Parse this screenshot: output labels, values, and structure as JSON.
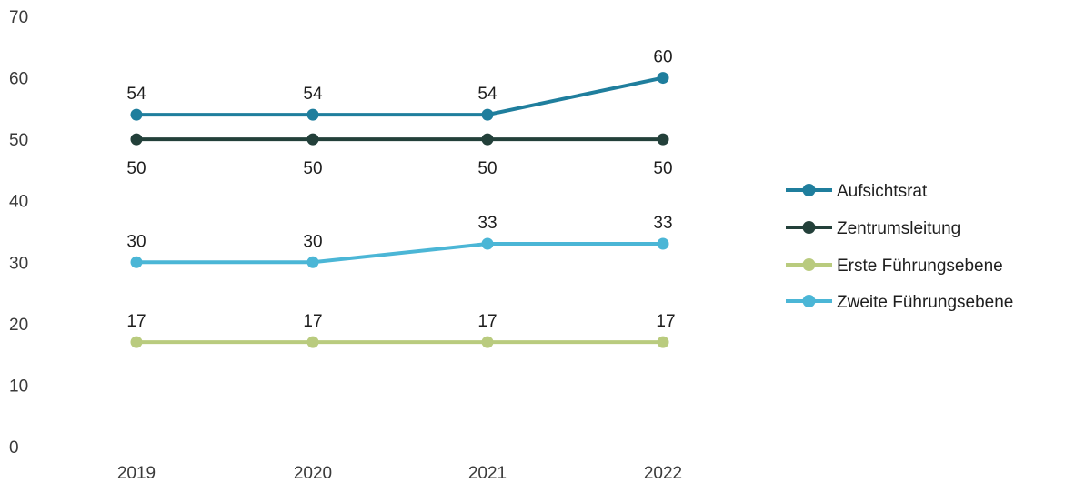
{
  "chart_data": {
    "type": "line",
    "categories": [
      "2019",
      "2020",
      "2021",
      "2022"
    ],
    "ylim": [
      0,
      70
    ],
    "yticks": [
      "0",
      "10",
      "20",
      "30",
      "40",
      "50",
      "60",
      "70"
    ],
    "grid": false,
    "legend_position": "right",
    "series": [
      {
        "name": "Aufsichtsrat",
        "values": [
          54,
          54,
          54,
          60
        ],
        "labels": [
          "54",
          "54",
          "54",
          "60"
        ],
        "label_pos": "above",
        "color": "#1f7e9d"
      },
      {
        "name": "Zentrumsleitung",
        "values": [
          50,
          50,
          50,
          50
        ],
        "labels": [
          "50",
          "50",
          "50",
          "50"
        ],
        "label_pos": "below",
        "color": "#23403a"
      },
      {
        "name": "Erste Führungsebene",
        "values": [
          17,
          17,
          17,
          17
        ],
        "labels": [
          "17",
          "17",
          "17",
          "17"
        ],
        "label_pos": "above",
        "color": "#b9cb7e"
      },
      {
        "name": "Zweite Führungsebene",
        "values": [
          30,
          30,
          33,
          33
        ],
        "labels": [
          "30",
          "30",
          "33",
          "33"
        ],
        "label_pos": "above",
        "color": "#4bb6d6"
      }
    ]
  }
}
